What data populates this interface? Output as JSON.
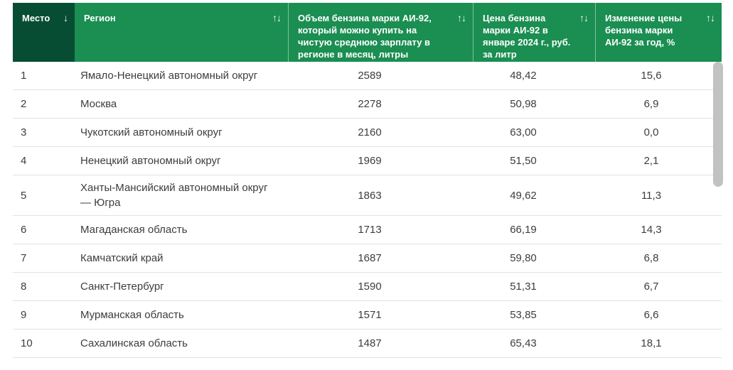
{
  "colors": {
    "header_green": "#1b8e52",
    "header_green_sorted": "#064d34",
    "header_text": "#ffffff",
    "row_text": "#3d3d3d",
    "row_border": "#e2e2e2",
    "scrollbar_thumb": "#c2c2c2"
  },
  "table": {
    "columns": [
      {
        "label": "Место",
        "sort_icon": "↓",
        "sorted": true
      },
      {
        "label": "Регион",
        "sort_icon": "↑↓",
        "sorted": false
      },
      {
        "label": "Объем бензина марки АИ-92, который можно купить на чистую среднюю зарплату в регионе в месяц, литры",
        "sort_icon": "↑↓",
        "sorted": false
      },
      {
        "label": "Цена бензина марки АИ-92 в январе 2024 г., руб. за литр",
        "sort_icon": "↑↓",
        "sorted": false
      },
      {
        "label": "Изменение цены бензина марки АИ-92 за год, %",
        "sort_icon": "↑↓",
        "sorted": false
      }
    ],
    "rows": [
      {
        "place": "1",
        "region": "Ямало-Ненецкий автономный округ",
        "volume": "2589",
        "price": "48,42",
        "change": "15,6"
      },
      {
        "place": "2",
        "region": "Москва",
        "volume": "2278",
        "price": "50,98",
        "change": "6,9"
      },
      {
        "place": "3",
        "region": "Чукотский автономный округ",
        "volume": "2160",
        "price": "63,00",
        "change": "0,0"
      },
      {
        "place": "4",
        "region": "Ненецкий автономный округ",
        "volume": "1969",
        "price": "51,50",
        "change": "2,1"
      },
      {
        "place": "5",
        "region": "Ханты-Мансийский автономный округ — Югра",
        "volume": "1863",
        "price": "49,62",
        "change": "11,3"
      },
      {
        "place": "6",
        "region": "Магаданская область",
        "volume": "1713",
        "price": "66,19",
        "change": "14,3"
      },
      {
        "place": "7",
        "region": "Камчатский край",
        "volume": "1687",
        "price": "59,80",
        "change": "6,8"
      },
      {
        "place": "8",
        "region": "Санкт-Петербург",
        "volume": "1590",
        "price": "51,31",
        "change": "6,7"
      },
      {
        "place": "9",
        "region": "Мурманская область",
        "volume": "1571",
        "price": "53,85",
        "change": "6,6"
      },
      {
        "place": "10",
        "region": "Сахалинская область",
        "volume": "1487",
        "price": "65,43",
        "change": "18,1"
      }
    ]
  }
}
